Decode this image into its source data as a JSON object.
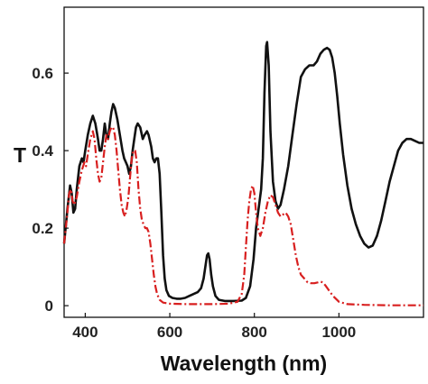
{
  "chart_data": {
    "type": "line",
    "title": "",
    "xlabel": "Wavelength (nm)",
    "ylabel": "T",
    "xlim": [
      350,
      1200
    ],
    "ylim": [
      -0.03,
      0.77
    ],
    "xticks": [
      400,
      600,
      800,
      1000
    ],
    "yticks": [
      0,
      0.2,
      0.4,
      0.6
    ],
    "xtick_labels": [
      "400",
      "600",
      "800",
      "1000"
    ],
    "ytick_labels": [
      "0",
      "0.2",
      "0.4",
      "0.6"
    ],
    "grid": false,
    "legend": "none",
    "series": [
      {
        "style": "solid",
        "color": "#111111",
        "points": [
          [
            350,
            0.16
          ],
          [
            358,
            0.25
          ],
          [
            364,
            0.31
          ],
          [
            368,
            0.29
          ],
          [
            372,
            0.24
          ],
          [
            376,
            0.25
          ],
          [
            380,
            0.3
          ],
          [
            386,
            0.36
          ],
          [
            392,
            0.38
          ],
          [
            396,
            0.37
          ],
          [
            400,
            0.4
          ],
          [
            406,
            0.44
          ],
          [
            412,
            0.47
          ],
          [
            418,
            0.49
          ],
          [
            424,
            0.47
          ],
          [
            430,
            0.43
          ],
          [
            434,
            0.4
          ],
          [
            438,
            0.4
          ],
          [
            442,
            0.43
          ],
          [
            446,
            0.47
          ],
          [
            450,
            0.44
          ],
          [
            454,
            0.43
          ],
          [
            458,
            0.47
          ],
          [
            462,
            0.5
          ],
          [
            466,
            0.52
          ],
          [
            470,
            0.51
          ],
          [
            476,
            0.48
          ],
          [
            482,
            0.44
          ],
          [
            488,
            0.4
          ],
          [
            492,
            0.38
          ],
          [
            496,
            0.37
          ],
          [
            500,
            0.36
          ],
          [
            504,
            0.34
          ],
          [
            508,
            0.36
          ],
          [
            512,
            0.4
          ],
          [
            516,
            0.43
          ],
          [
            520,
            0.46
          ],
          [
            524,
            0.47
          ],
          [
            530,
            0.46
          ],
          [
            536,
            0.43
          ],
          [
            540,
            0.44
          ],
          [
            546,
            0.45
          ],
          [
            550,
            0.44
          ],
          [
            556,
            0.41
          ],
          [
            560,
            0.38
          ],
          [
            564,
            0.37
          ],
          [
            568,
            0.38
          ],
          [
            572,
            0.38
          ],
          [
            576,
            0.34
          ],
          [
            580,
            0.24
          ],
          [
            584,
            0.13
          ],
          [
            588,
            0.07
          ],
          [
            592,
            0.04
          ],
          [
            598,
            0.025
          ],
          [
            606,
            0.02
          ],
          [
            616,
            0.018
          ],
          [
            626,
            0.018
          ],
          [
            636,
            0.02
          ],
          [
            646,
            0.025
          ],
          [
            656,
            0.03
          ],
          [
            666,
            0.035
          ],
          [
            674,
            0.045
          ],
          [
            680,
            0.07
          ],
          [
            684,
            0.1
          ],
          [
            688,
            0.13
          ],
          [
            691,
            0.135
          ],
          [
            694,
            0.12
          ],
          [
            698,
            0.08
          ],
          [
            702,
            0.05
          ],
          [
            708,
            0.025
          ],
          [
            716,
            0.015
          ],
          [
            730,
            0.012
          ],
          [
            750,
            0.012
          ],
          [
            770,
            0.013
          ],
          [
            780,
            0.02
          ],
          [
            790,
            0.05
          ],
          [
            798,
            0.12
          ],
          [
            804,
            0.2
          ],
          [
            810,
            0.25
          ],
          [
            816,
            0.3
          ],
          [
            820,
            0.38
          ],
          [
            824,
            0.55
          ],
          [
            828,
            0.67
          ],
          [
            830,
            0.68
          ],
          [
            834,
            0.62
          ],
          [
            838,
            0.45
          ],
          [
            844,
            0.32
          ],
          [
            850,
            0.27
          ],
          [
            856,
            0.25
          ],
          [
            862,
            0.26
          ],
          [
            870,
            0.3
          ],
          [
            880,
            0.36
          ],
          [
            890,
            0.44
          ],
          [
            900,
            0.52
          ],
          [
            910,
            0.59
          ],
          [
            920,
            0.61
          ],
          [
            930,
            0.62
          ],
          [
            940,
            0.62
          ],
          [
            948,
            0.63
          ],
          [
            956,
            0.65
          ],
          [
            964,
            0.66
          ],
          [
            972,
            0.665
          ],
          [
            978,
            0.66
          ],
          [
            984,
            0.64
          ],
          [
            990,
            0.6
          ],
          [
            996,
            0.54
          ],
          [
            1002,
            0.47
          ],
          [
            1010,
            0.39
          ],
          [
            1020,
            0.31
          ],
          [
            1030,
            0.25
          ],
          [
            1040,
            0.21
          ],
          [
            1050,
            0.18
          ],
          [
            1060,
            0.16
          ],
          [
            1070,
            0.15
          ],
          [
            1080,
            0.155
          ],
          [
            1090,
            0.18
          ],
          [
            1100,
            0.22
          ],
          [
            1110,
            0.27
          ],
          [
            1120,
            0.32
          ],
          [
            1130,
            0.36
          ],
          [
            1140,
            0.4
          ],
          [
            1150,
            0.42
          ],
          [
            1160,
            0.43
          ],
          [
            1170,
            0.43
          ],
          [
            1180,
            0.425
          ],
          [
            1190,
            0.42
          ],
          [
            1200,
            0.42
          ]
        ]
      },
      {
        "style": "dash-dot",
        "color": "#d81f1f",
        "points": [
          [
            350,
            0.16
          ],
          [
            356,
            0.22
          ],
          [
            362,
            0.29
          ],
          [
            366,
            0.3
          ],
          [
            370,
            0.27
          ],
          [
            374,
            0.26
          ],
          [
            380,
            0.28
          ],
          [
            386,
            0.32
          ],
          [
            392,
            0.35
          ],
          [
            398,
            0.37
          ],
          [
            402,
            0.36
          ],
          [
            406,
            0.39
          ],
          [
            412,
            0.43
          ],
          [
            418,
            0.45
          ],
          [
            422,
            0.43
          ],
          [
            426,
            0.38
          ],
          [
            430,
            0.34
          ],
          [
            434,
            0.32
          ],
          [
            438,
            0.33
          ],
          [
            442,
            0.37
          ],
          [
            446,
            0.41
          ],
          [
            450,
            0.44
          ],
          [
            454,
            0.43
          ],
          [
            458,
            0.45
          ],
          [
            462,
            0.46
          ],
          [
            466,
            0.46
          ],
          [
            470,
            0.44
          ],
          [
            474,
            0.4
          ],
          [
            478,
            0.35
          ],
          [
            482,
            0.3
          ],
          [
            486,
            0.26
          ],
          [
            490,
            0.24
          ],
          [
            494,
            0.23
          ],
          [
            498,
            0.25
          ],
          [
            502,
            0.28
          ],
          [
            506,
            0.33
          ],
          [
            510,
            0.38
          ],
          [
            514,
            0.4
          ],
          [
            518,
            0.4
          ],
          [
            522,
            0.37
          ],
          [
            526,
            0.3
          ],
          [
            530,
            0.25
          ],
          [
            534,
            0.22
          ],
          [
            538,
            0.21
          ],
          [
            542,
            0.2
          ],
          [
            546,
            0.2
          ],
          [
            550,
            0.19
          ],
          [
            554,
            0.16
          ],
          [
            558,
            0.12
          ],
          [
            562,
            0.08
          ],
          [
            566,
            0.05
          ],
          [
            570,
            0.03
          ],
          [
            576,
            0.015
          ],
          [
            584,
            0.008
          ],
          [
            600,
            0.005
          ],
          [
            640,
            0.004
          ],
          [
            700,
            0.004
          ],
          [
            740,
            0.005
          ],
          [
            760,
            0.01
          ],
          [
            770,
            0.03
          ],
          [
            776,
            0.08
          ],
          [
            780,
            0.15
          ],
          [
            784,
            0.22
          ],
          [
            788,
            0.27
          ],
          [
            792,
            0.3
          ],
          [
            796,
            0.31
          ],
          [
            800,
            0.29
          ],
          [
            804,
            0.24
          ],
          [
            808,
            0.2
          ],
          [
            814,
            0.18
          ],
          [
            820,
            0.2
          ],
          [
            826,
            0.24
          ],
          [
            832,
            0.27
          ],
          [
            838,
            0.285
          ],
          [
            844,
            0.28
          ],
          [
            850,
            0.26
          ],
          [
            856,
            0.24
          ],
          [
            862,
            0.23
          ],
          [
            868,
            0.235
          ],
          [
            874,
            0.24
          ],
          [
            880,
            0.23
          ],
          [
            886,
            0.21
          ],
          [
            892,
            0.17
          ],
          [
            898,
            0.13
          ],
          [
            904,
            0.1
          ],
          [
            910,
            0.08
          ],
          [
            918,
            0.07
          ],
          [
            926,
            0.06
          ],
          [
            934,
            0.058
          ],
          [
            942,
            0.058
          ],
          [
            950,
            0.06
          ],
          [
            956,
            0.062
          ],
          [
            962,
            0.06
          ],
          [
            968,
            0.052
          ],
          [
            976,
            0.04
          ],
          [
            986,
            0.025
          ],
          [
            1000,
            0.01
          ],
          [
            1020,
            0.004
          ],
          [
            1060,
            0.002
          ],
          [
            1120,
            0.001
          ],
          [
            1200,
            0.001
          ]
        ]
      }
    ]
  }
}
